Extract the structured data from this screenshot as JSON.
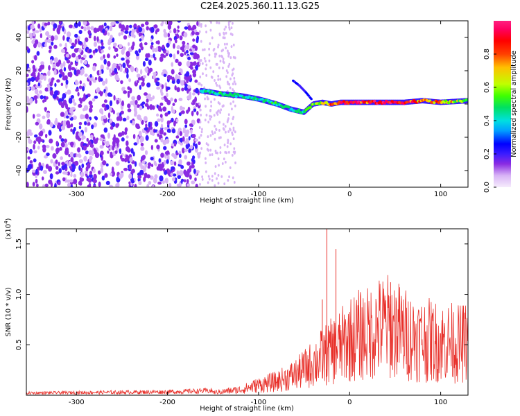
{
  "title": "C2E4.2025.360.11.13.G25",
  "chart_data": [
    {
      "type": "heatmap",
      "xlabel": "Height of straight line (km)",
      "ylabel": "Frequency (Hz)",
      "xlim": [
        -355,
        130
      ],
      "ylim": [
        -50,
        50
      ],
      "xticks": [
        -300,
        -200,
        -100,
        0,
        100
      ],
      "yticks": [
        -40,
        -20,
        0,
        20,
        40
      ],
      "xtick_labels": [
        "-300",
        "-200",
        "-100",
        "0",
        "100"
      ],
      "ytick_labels": [
        "-40",
        "-20",
        "0",
        "20",
        "40"
      ],
      "colorbar": {
        "label": "Normalized spectral amplitude",
        "range": [
          0,
          1
        ],
        "ticks": [
          0.0,
          0.2,
          0.4,
          0.6,
          0.8
        ],
        "tick_labels": [
          "0.0",
          "0.2",
          "0.4",
          "0.6",
          "0.8"
        ],
        "colors": [
          "#f6ecfc",
          "#d8b4f6",
          "#8a2be2",
          "#3b1cff",
          "#0000ff",
          "#00a0ff",
          "#00e0e0",
          "#00e060",
          "#40ff00",
          "#c0ff00",
          "#ffc000",
          "#ff4000",
          "#ff0000",
          "#ff0060",
          "#ff2080"
        ]
      },
      "noise_region": {
        "x_from": -355,
        "x_to": -165,
        "tail_to": -125
      },
      "signal_track": {
        "x": [
          -163,
          -140,
          -120,
          -100,
          -80,
          -65,
          -50,
          -40,
          -30,
          -20,
          -10,
          0,
          20,
          40,
          60,
          80,
          100,
          130
        ],
        "freq": [
          8,
          6,
          5,
          3,
          0,
          -3,
          -5,
          0,
          1,
          0,
          1,
          1,
          1,
          1,
          1,
          2,
          1,
          2
        ],
        "amp": [
          0.5,
          0.55,
          0.55,
          0.5,
          0.55,
          0.5,
          0.55,
          0.6,
          0.7,
          0.85,
          0.9,
          0.92,
          0.95,
          0.98,
          0.9,
          0.85,
          0.8,
          0.6
        ]
      },
      "branch_track": {
        "x": [
          -62,
          -55,
          -48,
          -42
        ],
        "freq": [
          14,
          11,
          7,
          3
        ]
      }
    },
    {
      "type": "line",
      "xlabel": "Height of straight line (km)",
      "ylabel": "SNR (10 * v/v)",
      "y_multiplier_label": "(x10",
      "y_multiplier_exp": "4",
      "y_multiplier_close": ")",
      "xlim": [
        -355,
        130
      ],
      "ylim": [
        0,
        1.65
      ],
      "xticks": [
        -300,
        -200,
        -100,
        0,
        100
      ],
      "yticks": [
        0.5,
        1.0,
        1.5
      ],
      "xtick_labels": [
        "-300",
        "-200",
        "-100",
        "0",
        "100"
      ],
      "ytick_labels": [
        "0.5",
        "1.0",
        "1.5"
      ],
      "color": "#e8302a",
      "envelope": {
        "x": [
          -355,
          -200,
          -150,
          -120,
          -100,
          -80,
          -60,
          -45,
          -35,
          -25,
          -10,
          0,
          10,
          20,
          30,
          40,
          50,
          60,
          70,
          80,
          90,
          100,
          110,
          120,
          130
        ],
        "y": [
          0.02,
          0.03,
          0.04,
          0.08,
          0.15,
          0.2,
          0.3,
          0.42,
          0.52,
          0.6,
          0.72,
          0.82,
          0.88,
          0.9,
          0.98,
          1.02,
          0.98,
          0.9,
          0.85,
          0.82,
          0.8,
          0.78,
          0.78,
          0.75,
          0.78
        ]
      },
      "spikes": [
        {
          "x": -25,
          "y": 1.65
        },
        {
          "x": -15,
          "y": 1.45
        },
        {
          "x": -30,
          "y": 0.95
        },
        {
          "x": 45,
          "y": 1.12
        }
      ]
    }
  ]
}
